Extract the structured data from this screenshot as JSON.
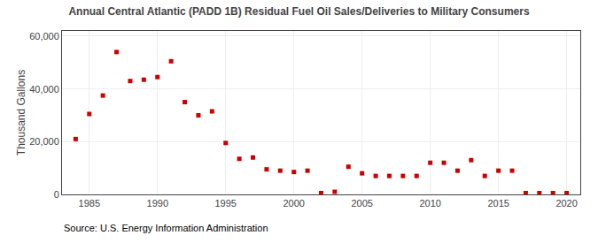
{
  "chart_data": {
    "type": "scatter",
    "title": "Annual Central Atlantic (PADD 1B) Residual Fuel Oil Sales/Deliveries to Military Consumers",
    "ylabel": "Thousand Gallons",
    "annotations": [
      "Source: U.S. Energy Information Administration"
    ],
    "color": "#cc0000",
    "marker": "square",
    "grid": true,
    "xlim": [
      1983,
      2021
    ],
    "xticks": [
      1985,
      1990,
      1995,
      2000,
      2005,
      2010,
      2015,
      2020
    ],
    "ylim": [
      0,
      62000
    ],
    "yticks": [
      0,
      {
        "value": 20000,
        "label": "20,000"
      },
      {
        "value": 40000,
        "label": "40,000"
      },
      {
        "value": 60000,
        "label": "60,000"
      }
    ],
    "x": [
      1984,
      1985,
      1986,
      1987,
      1988,
      1989,
      1990,
      1991,
      1992,
      1993,
      1994,
      1995,
      1996,
      1997,
      1998,
      1999,
      2000,
      2001,
      2002,
      2003,
      2004,
      2005,
      2006,
      2007,
      2008,
      2009,
      2010,
      2011,
      2012,
      2013,
      2014,
      2015,
      2016,
      2017,
      2018,
      2019,
      2020
    ],
    "values": [
      21000,
      30500,
      37500,
      54000,
      43000,
      43500,
      44500,
      50500,
      35000,
      30000,
      31500,
      19500,
      13500,
      14000,
      9500,
      9000,
      8500,
      9000,
      500,
      1000,
      10500,
      8000,
      7000,
      7000,
      7000,
      7000,
      12000,
      12000,
      9000,
      13000,
      7000,
      9000,
      9000,
      500,
      500,
      500,
      500
    ]
  }
}
